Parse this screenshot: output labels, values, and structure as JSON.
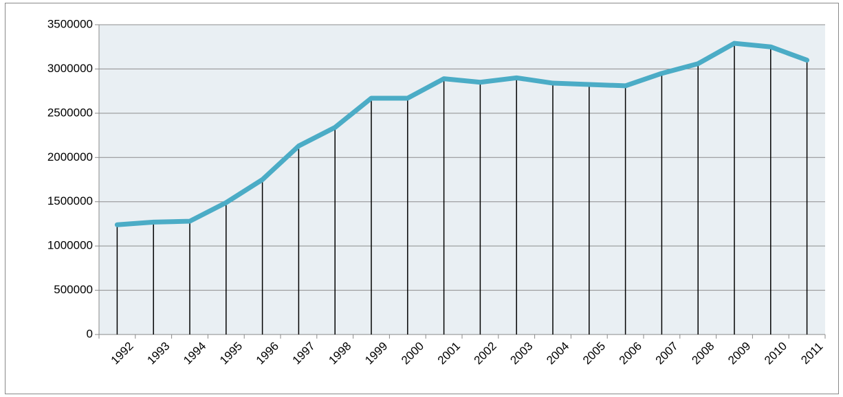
{
  "chart_data": {
    "type": "line",
    "categories": [
      "1992",
      "1993",
      "1994",
      "1995",
      "1996",
      "1997",
      "1998",
      "1999",
      "2000",
      "2001",
      "2002",
      "2003",
      "2004",
      "2005",
      "2006",
      "2007",
      "2008",
      "2009",
      "2010",
      "2011"
    ],
    "values": [
      1240000,
      1270000,
      1280000,
      1490000,
      1750000,
      2130000,
      2340000,
      2670000,
      2670000,
      2890000,
      2850000,
      2900000,
      2840000,
      2825000,
      2810000,
      2950000,
      3060000,
      3290000,
      3250000,
      3100000
    ],
    "color": "#4bacc6",
    "ylim": [
      0,
      3500000
    ],
    "yticks": [
      0,
      500000,
      1000000,
      1500000,
      2000000,
      2500000,
      3000000,
      3500000
    ],
    "grid": true,
    "drop_lines": true,
    "plot_background": "#e9eff3"
  }
}
